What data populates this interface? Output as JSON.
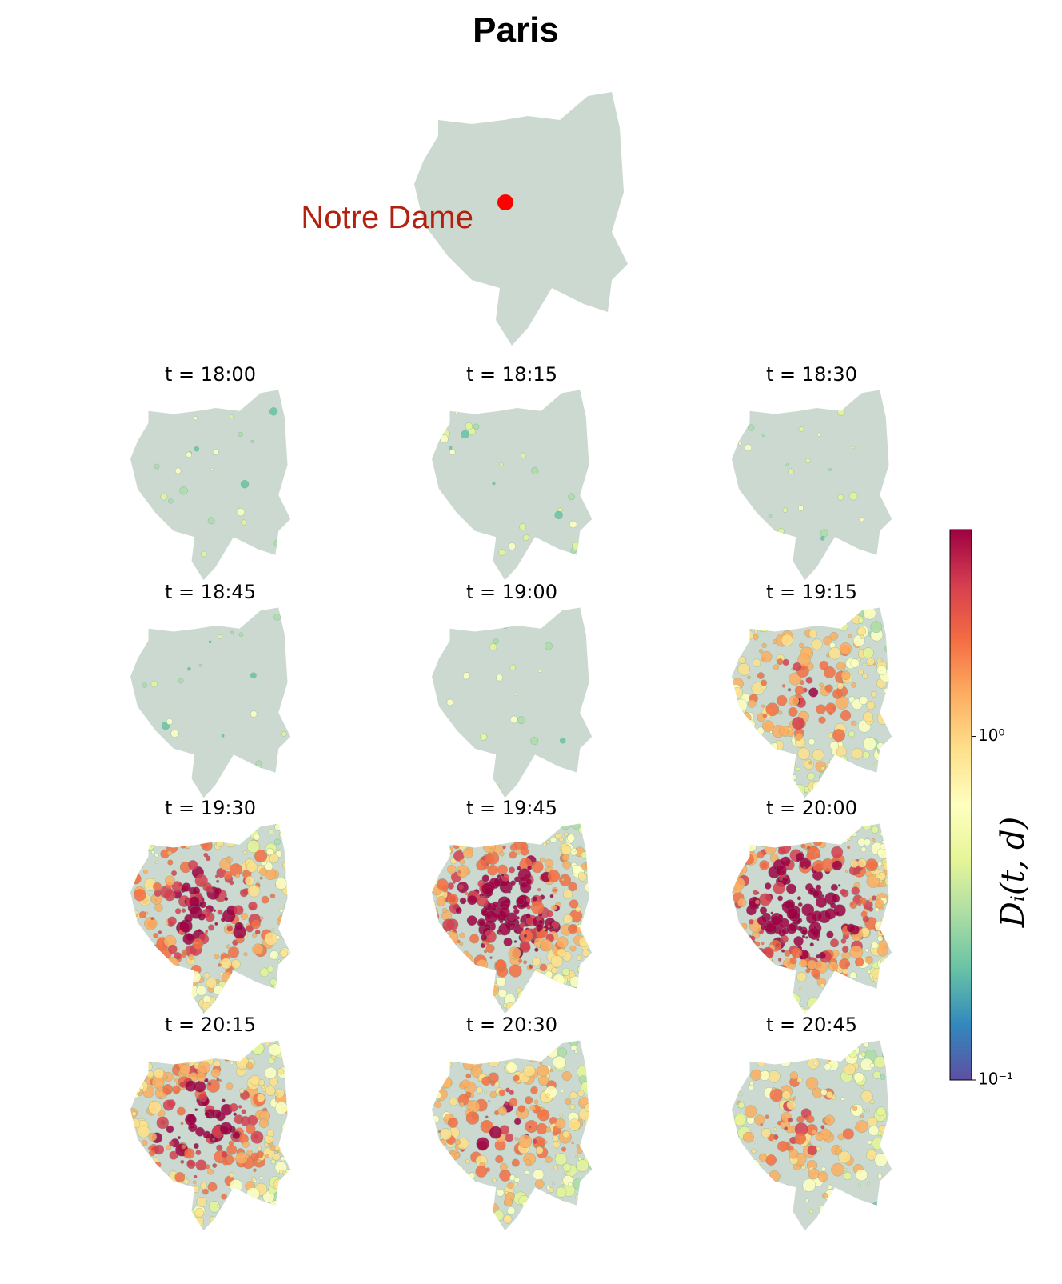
{
  "title": "Paris",
  "landmark": {
    "label": "Notre Dame"
  },
  "panels": [
    {
      "label": "t = 18:00"
    },
    {
      "label": "t = 18:15"
    },
    {
      "label": "t = 18:30"
    },
    {
      "label": "t = 18:45"
    },
    {
      "label": "t = 19:00"
    },
    {
      "label": "t = 19:15"
    },
    {
      "label": "t = 19:30"
    },
    {
      "label": "t = 19:45"
    },
    {
      "label": "t = 20:00"
    },
    {
      "label": "t = 20:15"
    },
    {
      "label": "t = 20:30"
    },
    {
      "label": "t = 20:45"
    }
  ],
  "colorbar": {
    "label": "Dᵢ(t, d)",
    "log_scale": true,
    "lim": [
      0.1,
      4
    ],
    "ticks": [
      {
        "value": 1,
        "label": "10⁰"
      },
      {
        "value": 0.1,
        "label": "10⁻¹"
      }
    ],
    "colors": [
      "#5e4fa2",
      "#3288bd",
      "#66c2a5",
      "#abdda4",
      "#e6f598",
      "#ffffbf",
      "#fee08b",
      "#fdae61",
      "#f46d43",
      "#d53e4f",
      "#9e0142"
    ]
  }
}
